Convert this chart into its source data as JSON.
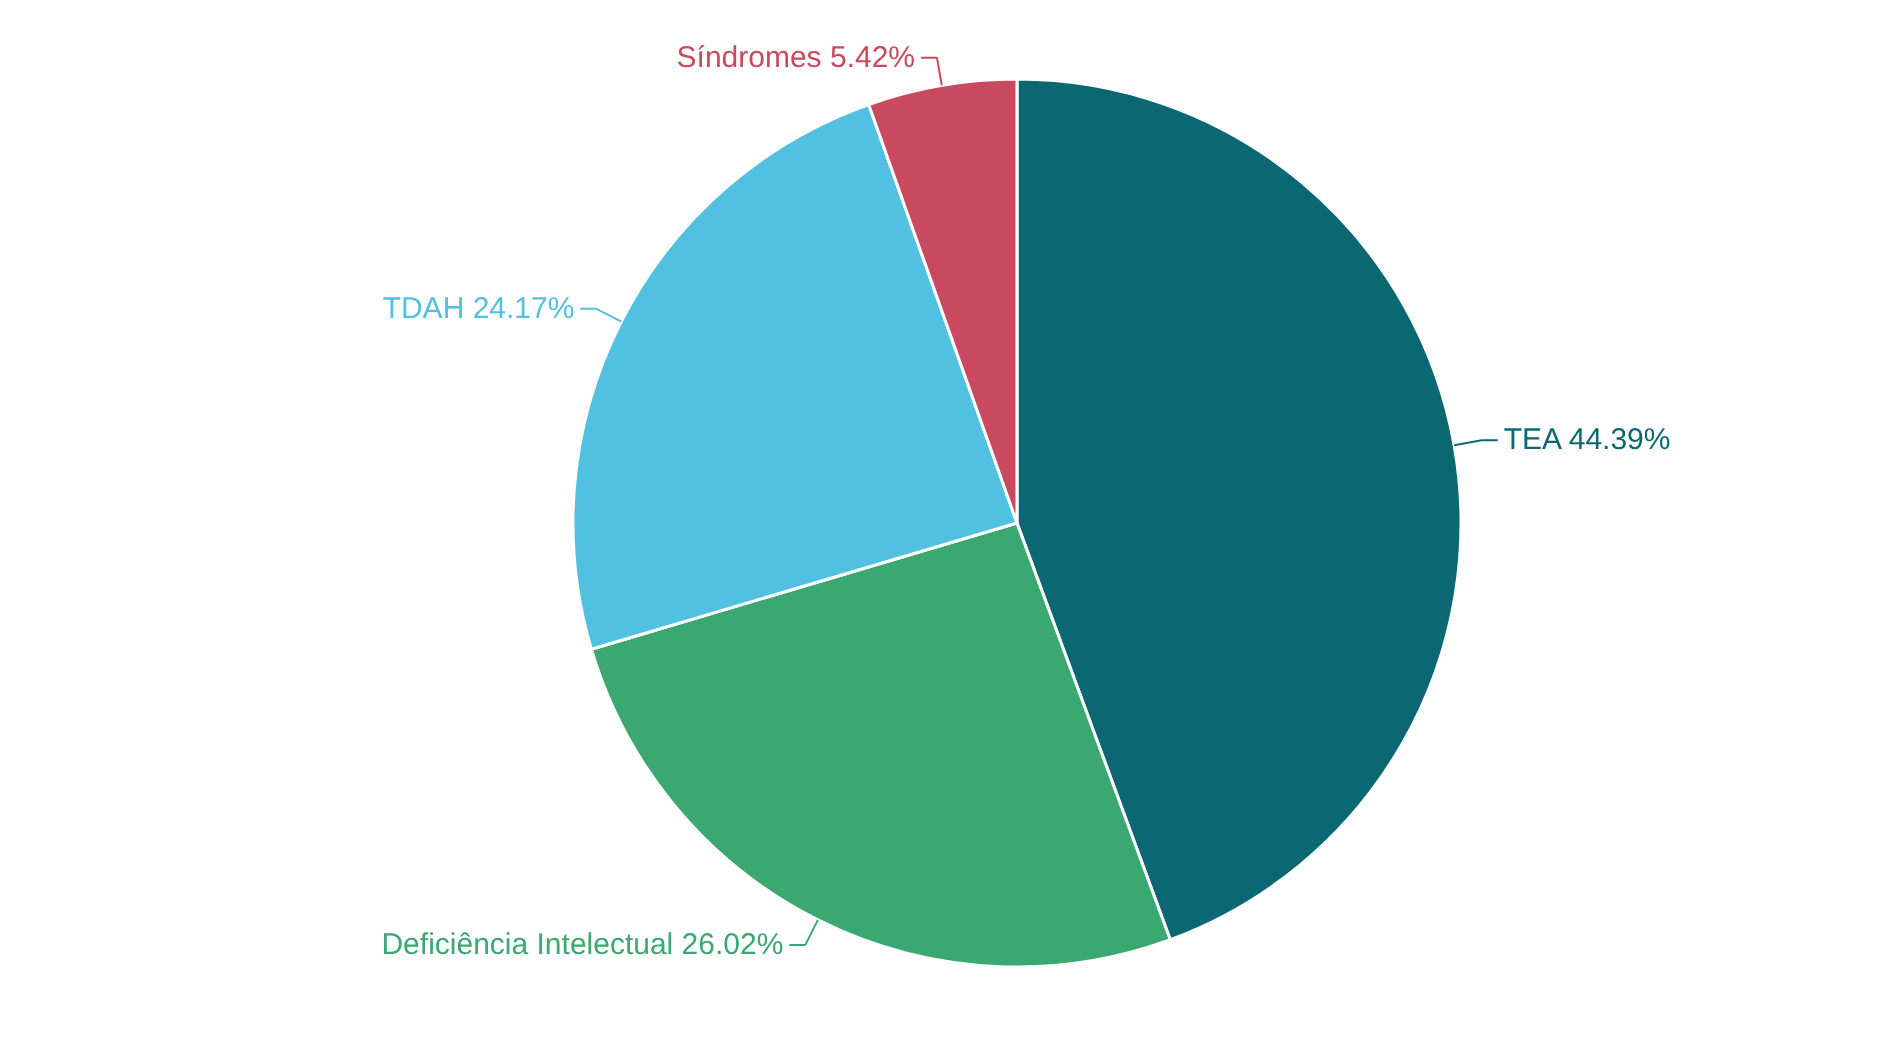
{
  "chart_data": {
    "type": "pie",
    "categories": [
      "TEA",
      "Deficiência Intelectual",
      "TDAH",
      "Síndromes"
    ],
    "values": [
      44.39,
      26.02,
      24.17,
      5.42
    ],
    "value_labels": [
      "44.39%",
      "26.02%",
      "24.17%",
      "5.42%"
    ],
    "colors": [
      "#0b6873",
      "#3aa870",
      "#52c0e0",
      "#c94a5e"
    ]
  }
}
